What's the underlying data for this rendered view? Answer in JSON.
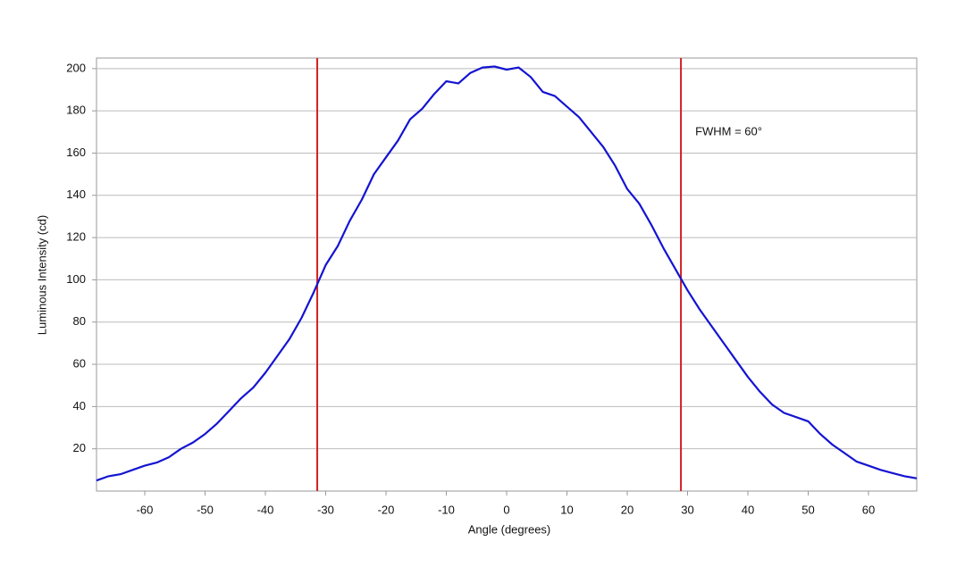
{
  "chart_data": {
    "type": "line",
    "x_label": "Angle (degrees)",
    "y_label": "Luminous Intensity (cd)",
    "annotation": "FWHM = 60°",
    "x": [
      -68,
      -66,
      -64,
      -62,
      -60,
      -58,
      -56,
      -54,
      -52,
      -50,
      -48,
      -46,
      -44,
      -42,
      -40,
      -38,
      -36,
      -34,
      -32,
      -30,
      -28,
      -26,
      -24,
      -22,
      -20,
      -18,
      -16,
      -14,
      -12,
      -10,
      -8,
      -6,
      -4,
      -2,
      0,
      2,
      4,
      6,
      8,
      10,
      12,
      14,
      16,
      18,
      20,
      22,
      24,
      26,
      28,
      30,
      32,
      34,
      36,
      38,
      40,
      42,
      44,
      46,
      48,
      50,
      52,
      54,
      56,
      58,
      60,
      62,
      64,
      66,
      68
    ],
    "series": [
      {
        "color": "#1414d2",
        "values": [
          5,
          7,
          8,
          10,
          12,
          13.5,
          16,
          20,
          23,
          27,
          32,
          38,
          44,
          49,
          56,
          64,
          72,
          82,
          94,
          107,
          116,
          128,
          138,
          150,
          158,
          166,
          176,
          181,
          188,
          194,
          193,
          198,
          200.5,
          201,
          199.5,
          200.5,
          196,
          189,
          187,
          182,
          177,
          170,
          163,
          154,
          143,
          136,
          126,
          115,
          105,
          95,
          86,
          78,
          70,
          62,
          54,
          47,
          41,
          37,
          35,
          33,
          27,
          22,
          18,
          14,
          12,
          10,
          8.5,
          7,
          6
        ]
      }
    ],
    "vlines": [
      {
        "value": -31.4,
        "color": "#d42020"
      },
      {
        "value": 28.9,
        "color": "#d42020"
      }
    ],
    "xlim": [
      -68,
      68
    ],
    "ylim": [
      0,
      205
    ],
    "xticks": [
      -60,
      -50,
      -40,
      -30,
      -20,
      -10,
      0,
      10,
      20,
      30,
      40,
      50,
      60
    ],
    "yticks": [
      20,
      40,
      60,
      80,
      100,
      120,
      140,
      160,
      180,
      200
    ],
    "grid": true
  }
}
